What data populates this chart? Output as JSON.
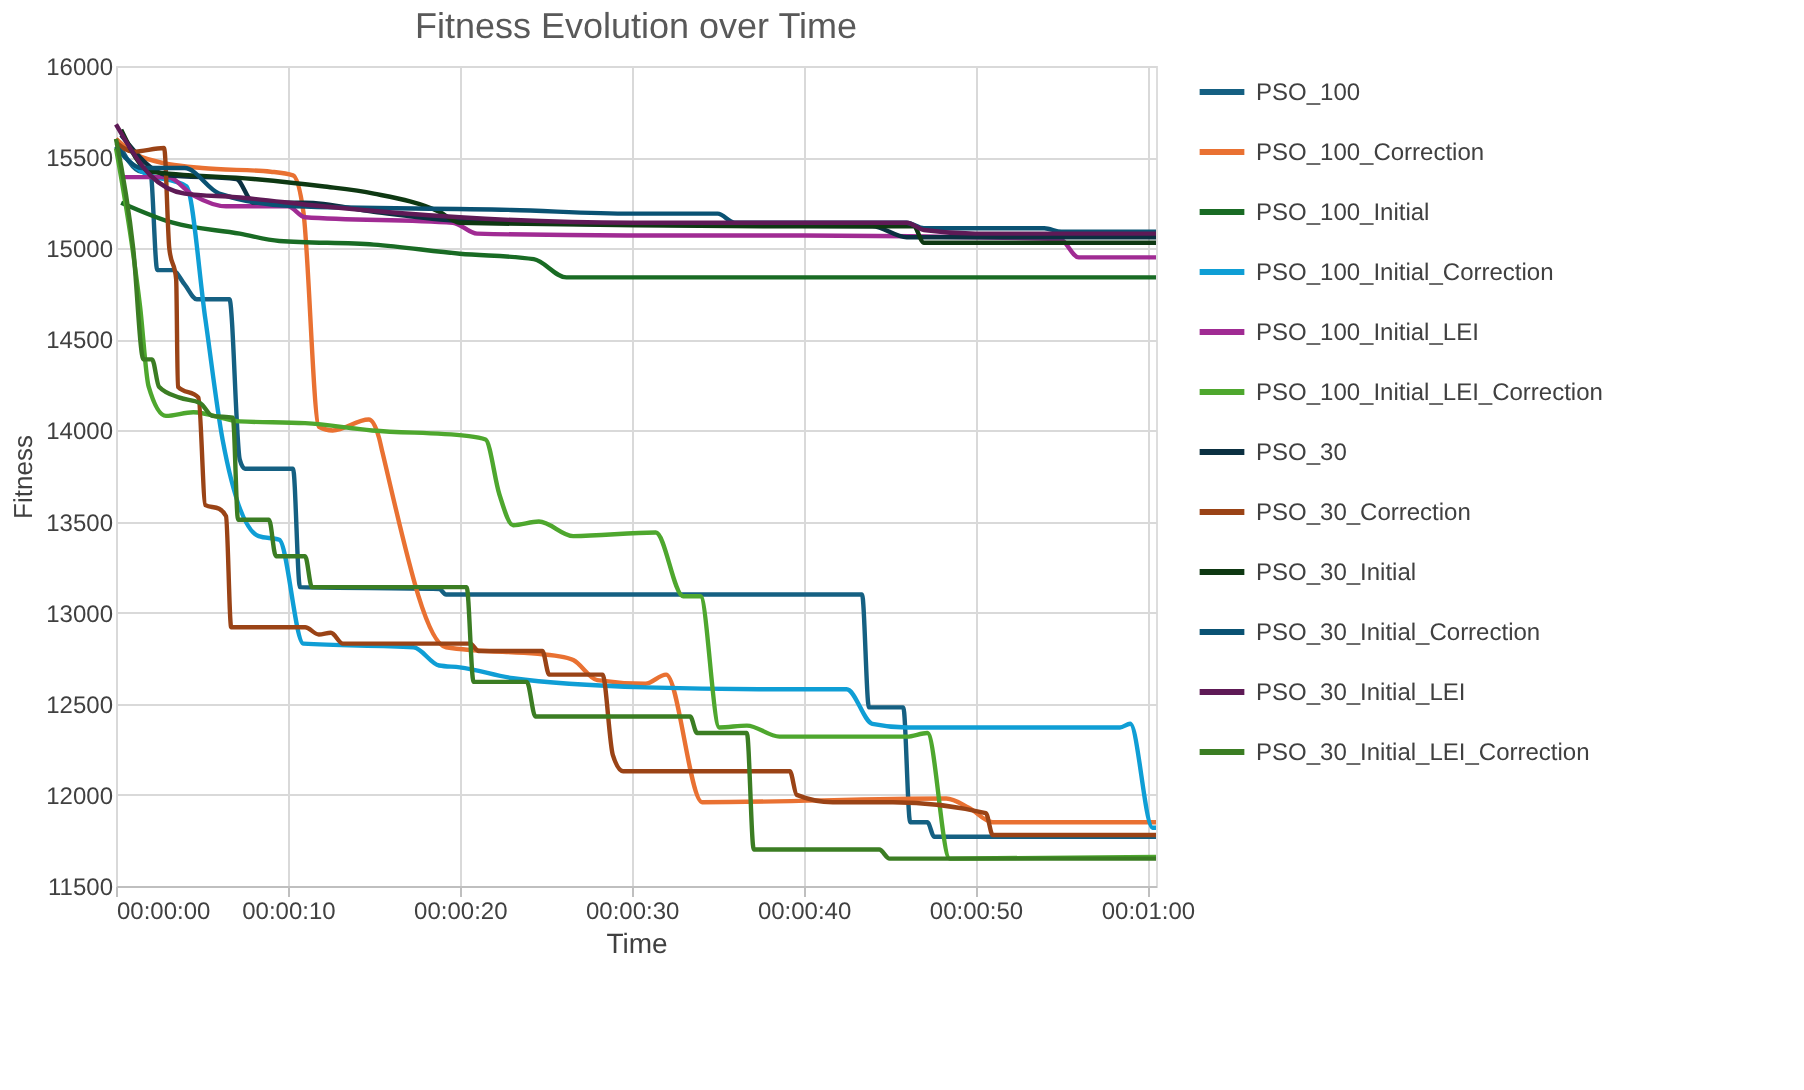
{
  "chart_data": {
    "type": "line",
    "title": "Fitness Evolution over Time",
    "xlabel": "Time",
    "ylabel": "Fitness",
    "xlim": [
      0,
      60.5
    ],
    "xticks": [
      {
        "value": 0,
        "label": "00:00:00"
      },
      {
        "value": 10,
        "label": "00:00:10"
      },
      {
        "value": 20,
        "label": "00:00:20"
      },
      {
        "value": 30,
        "label": "00:00:30"
      },
      {
        "value": 40,
        "label": "00:00:40"
      },
      {
        "value": 50,
        "label": "00:00:50"
      },
      {
        "value": 60,
        "label": "00:01:00"
      }
    ],
    "ylim": [
      11500,
      16000
    ],
    "yticks": [
      11500,
      12000,
      12500,
      13000,
      13500,
      14000,
      14500,
      15000,
      15500,
      16000
    ],
    "grid": true,
    "legend": "right",
    "marker": "none",
    "line_style": "solid",
    "series": [
      {
        "name": "PSO_100",
        "color": "#156082",
        "x": [
          0,
          1.5,
          2,
          2.4,
          3.3,
          4,
          4.7,
          6.6,
          7.2,
          7.5,
          10.3,
          10.7,
          18.8,
          19.2,
          43.4,
          43.8,
          45.8,
          46.2,
          47.2,
          47.6,
          60.5
        ],
        "values": [
          15600,
          15420,
          15420,
          14880,
          14880,
          14800,
          14720,
          14720,
          13840,
          13790,
          13790,
          13140,
          13130,
          13100,
          13100,
          12480,
          12480,
          11850,
          11850,
          11770,
          11770
        ]
      },
      {
        "name": "PSO_100_Correction",
        "color": "#e97132",
        "x": [
          0,
          1.5,
          5,
          9,
          10.3,
          10.9,
          11.8,
          12.6,
          14.7,
          15.3,
          15.5,
          19.2,
          25.8,
          26.6,
          28,
          30.8,
          32,
          34.1,
          48.3,
          49.6,
          51,
          60.5
        ],
        "values": [
          15600,
          15500,
          15440,
          15420,
          15400,
          15200,
          14020,
          14000,
          14060,
          13960,
          13880,
          12810,
          12760,
          12740,
          12630,
          12610,
          12660,
          11960,
          11980,
          11930,
          11850,
          11850
        ]
      },
      {
        "name": "PSO_100_Initial",
        "color": "#196b24",
        "x": [
          0.3,
          3.3,
          7.2,
          9.5,
          15,
          20,
          24.3,
          26.2,
          60.5
        ],
        "values": [
          15250,
          15140,
          15080,
          15040,
          15020,
          14970,
          14940,
          14840,
          14840
        ]
      },
      {
        "name": "PSO_100_Initial_Correction",
        "color": "#0f9ed5",
        "x": [
          0,
          1.5,
          4.1,
          5.2,
          6.2,
          8.3,
          9.5,
          10.9,
          17.3,
          18.8,
          20,
          23.1,
          30.8,
          37.4,
          42.5,
          44,
          46,
          58.4,
          59,
          60.3,
          60.5
        ],
        "values": [
          15550,
          15420,
          15340,
          14610,
          13950,
          13420,
          13400,
          12830,
          12810,
          12710,
          12700,
          12640,
          12590,
          12580,
          12580,
          12390,
          12370,
          12370,
          12390,
          11820,
          11820
        ]
      },
      {
        "name": "PSO_100_Initial_LEI",
        "color": "#a02b93",
        "x": [
          0.5,
          3,
          4.5,
          6.4,
          10,
          11,
          19.6,
          21,
          29.7,
          40,
          54.9,
          56,
          60.5
        ],
        "values": [
          15390,
          15390,
          15290,
          15230,
          15230,
          15170,
          15140,
          15080,
          15070,
          15070,
          15050,
          14950,
          14950
        ]
      },
      {
        "name": "PSO_100_Initial_LEI_Correction",
        "color": "#4ea72e",
        "x": [
          0,
          1,
          1.4,
          1.9,
          2.9,
          4.5,
          7.2,
          11,
          14.9,
          20.4,
          21.5,
          22.3,
          23.1,
          24.6,
          26.6,
          31.4,
          33,
          34,
          35.1,
          36.7,
          38.6,
          46,
          47.2,
          48.5,
          60.5
        ],
        "values": [
          15550,
          14970,
          14680,
          14240,
          14080,
          14100,
          14050,
          14040,
          14000,
          13970,
          13950,
          13650,
          13480,
          13500,
          13420,
          13440,
          13090,
          13090,
          12370,
          12380,
          12320,
          12320,
          12340,
          11650,
          11660
        ]
      },
      {
        "name": "PSO_30",
        "color": "#0b3041",
        "x": [
          0.3,
          3,
          7,
          8,
          11,
          15,
          20,
          30,
          44,
          46,
          60.5
        ],
        "values": [
          15620,
          15400,
          15380,
          15250,
          15250,
          15200,
          15150,
          15130,
          15120,
          15060,
          15060
        ]
      },
      {
        "name": "PSO_30_Correction",
        "color": "#9a4316",
        "x": [
          0,
          1,
          2.8,
          3.1,
          3.5,
          3.6,
          4.8,
          5.2,
          6,
          6.4,
          6.7,
          11,
          11.8,
          12.5,
          13.2,
          20.6,
          21.1,
          24.8,
          25.2,
          28.3,
          28.9,
          29.5,
          39.2,
          39.6,
          41.7,
          45.2,
          50.6,
          51,
          60.5
        ],
        "values": [
          15580,
          15530,
          15550,
          15000,
          14830,
          14240,
          14180,
          13590,
          13570,
          13530,
          12920,
          12920,
          12880,
          12890,
          12830,
          12830,
          12790,
          12790,
          12660,
          12660,
          12220,
          12130,
          12130,
          12000,
          11960,
          11960,
          11900,
          11780,
          11780
        ]
      },
      {
        "name": "PSO_30_Initial",
        "color": "#0e3812",
        "x": [
          0.3,
          2,
          8,
          12,
          15,
          18.8,
          20,
          40,
          46.4,
          47,
          60.5
        ],
        "values": [
          15650,
          15420,
          15380,
          15340,
          15300,
          15200,
          15140,
          15120,
          15120,
          15030,
          15030
        ]
      },
      {
        "name": "PSO_30_Initial_Correction",
        "color": "#0a5273",
        "x": [
          0,
          1.5,
          4,
          6,
          10.4,
          23,
          30,
          35,
          36,
          46,
          47,
          54,
          55,
          60.5
        ],
        "values": [
          15560,
          15440,
          15440,
          15300,
          15230,
          15210,
          15190,
          15190,
          15140,
          15140,
          15110,
          15110,
          15090,
          15090
        ]
      },
      {
        "name": "PSO_30_Initial_LEI",
        "color": "#5e1a56",
        "x": [
          0,
          2,
          4,
          7,
          12,
          20,
          30,
          46,
          47,
          50,
          60.5
        ],
        "values": [
          15680,
          15400,
          15300,
          15280,
          15230,
          15170,
          15140,
          15140,
          15100,
          15080,
          15080
        ]
      },
      {
        "name": "PSO_30_Initial_LEI_Correction",
        "color": "#3b7d23",
        "x": [
          0,
          1,
          1.6,
          2.1,
          2.5,
          3.7,
          4.9,
          5.6,
          6.8,
          7.1,
          8.9,
          9.3,
          11,
          11.4,
          20.4,
          20.8,
          23.9,
          24.4,
          33.4,
          33.8,
          36.7,
          37.1,
          44.4,
          45,
          60.5
        ],
        "values": [
          15600,
          15000,
          14390,
          14390,
          14240,
          14180,
          14150,
          14080,
          14070,
          13510,
          13510,
          13310,
          13310,
          13140,
          13140,
          12620,
          12620,
          12430,
          12430,
          12340,
          12340,
          11700,
          11700,
          11650,
          11650
        ]
      }
    ]
  }
}
